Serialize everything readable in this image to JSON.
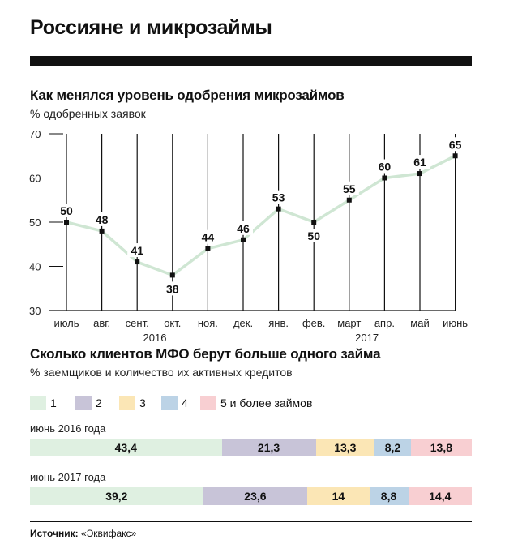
{
  "title": "Россияне и микрозаймы",
  "colors": {
    "line": "#cfe6d3",
    "point": "#111111",
    "grid": "#111111",
    "seg1": "#dff0e1",
    "seg2": "#c8c4d8",
    "seg3": "#fbe6b5",
    "seg4": "#bcd3e6",
    "seg5": "#f8cfd2"
  },
  "chart_data": [
    {
      "type": "line",
      "title": "Как менялся уровень одобрения микрозаймов",
      "subtitle": "% одобренных заявок",
      "categories": [
        "июль",
        "авг.",
        "сент.",
        "окт.",
        "ноя.",
        "дек.",
        "янв.",
        "фев.",
        "март",
        "апр.",
        "май",
        "июнь"
      ],
      "values": [
        50,
        48,
        41,
        38,
        44,
        46,
        53,
        50,
        55,
        60,
        61,
        65
      ],
      "labels": [
        "50",
        "48",
        "41",
        "38",
        "44",
        "46",
        "53",
        "50",
        "55",
        "60",
        "61",
        "65"
      ],
      "yticks": [
        "70",
        "60",
        "50",
        "40",
        "30"
      ],
      "ylim": [
        30,
        70
      ],
      "years": [
        "2016",
        "2017"
      ],
      "grid": true
    },
    {
      "type": "bar",
      "title": "Сколько клиентов МФО берут больше одного займа",
      "subtitle": "% заемщиков и количество их активных кредитов",
      "legend": [
        "1",
        "2",
        "3",
        "4",
        "5 и более займов"
      ],
      "rows": [
        {
          "label": "июнь 2016 года",
          "values": [
            43.4,
            21.3,
            13.3,
            8.2,
            13.8
          ],
          "texts": [
            "43,4",
            "21,3",
            "13,3",
            "8,2",
            "13,8"
          ]
        },
        {
          "label": "июнь 2017 года",
          "values": [
            39.2,
            23.6,
            14,
            8.8,
            14.4
          ],
          "texts": [
            "39,2",
            "23,6",
            "14",
            "8,8",
            "14,4"
          ]
        }
      ]
    }
  ],
  "source": {
    "label": "Источник:",
    "text": " «Эквифакс»"
  }
}
